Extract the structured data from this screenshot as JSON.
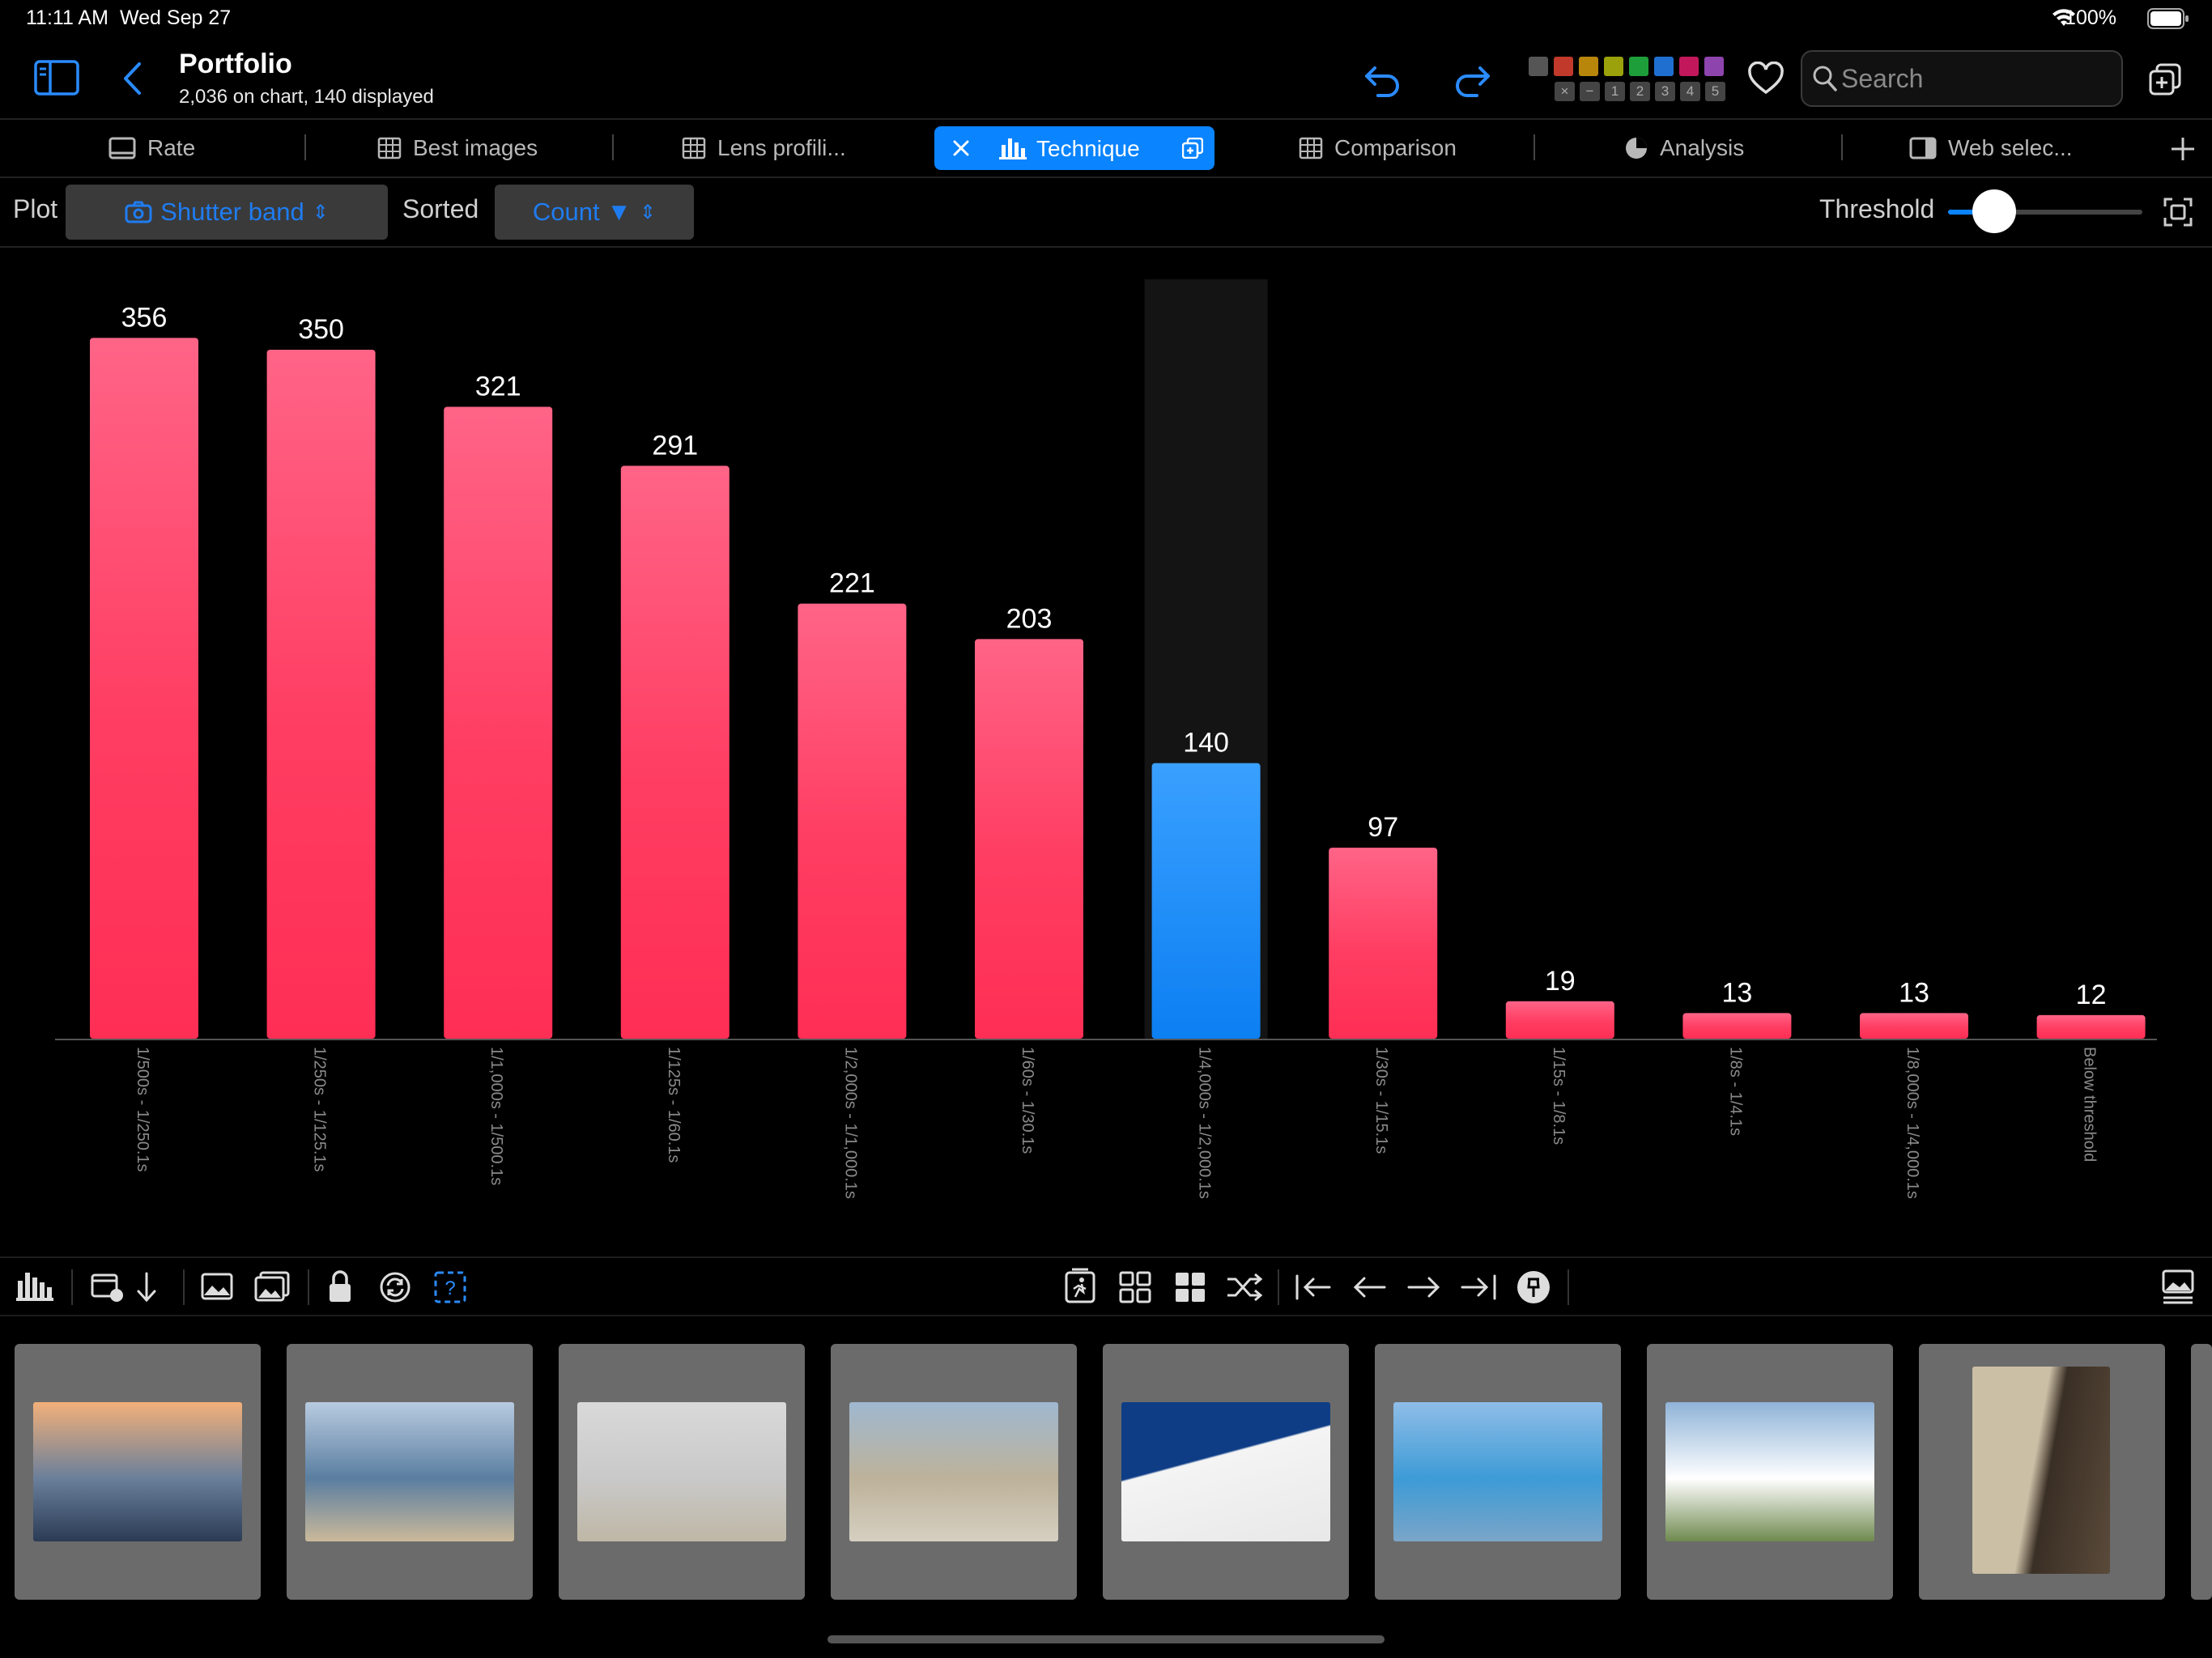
{
  "status_bar": {
    "time": "11:11 AM",
    "date": "Wed Sep 27",
    "battery": "100%"
  },
  "header": {
    "title": "Portfolio",
    "subtitle": "2,036 on chart, 140 displayed",
    "search_placeholder": "Search",
    "color_labels": [
      "#555555",
      "#c0392b",
      "#b8860b",
      "#9aa10a",
      "#1e9e3a",
      "#1f6fd1",
      "#c2185b",
      "#8e44ad"
    ],
    "rating_filters": [
      "×",
      "−",
      "1",
      "2",
      "3",
      "4",
      "5"
    ]
  },
  "tabs": [
    {
      "label": "Rate",
      "icon": "rate-icon"
    },
    {
      "label": "Best images",
      "icon": "grid-icon"
    },
    {
      "label": "Lens profili...",
      "icon": "grid-icon"
    },
    {
      "label": "Technique",
      "icon": "bar-chart-icon",
      "active": true
    },
    {
      "label": "Comparison",
      "icon": "grid-icon"
    },
    {
      "label": "Analysis",
      "icon": "pie-icon"
    },
    {
      "label": "Web selec...",
      "icon": "sidebar-icon"
    }
  ],
  "controls": {
    "plot_label": "Plot",
    "plot_value": "Shutter band",
    "sorted_label": "Sorted",
    "sorted_value": "Count ▼",
    "threshold_label": "Threshold",
    "threshold_level": 0.12
  },
  "chart_data": {
    "type": "bar",
    "categories": [
      "1/500s - 1/250.1s",
      "1/250s - 1/125.1s",
      "1/1,000s - 1/500.1s",
      "1/125s - 1/60.1s",
      "1/2,000s - 1/1,000.1s",
      "1/60s - 1/30.1s",
      "1/4,000s - 1/2,000.1s",
      "1/30s - 1/15.1s",
      "1/15s - 1/8.1s",
      "1/8s - 1/4.1s",
      "1/8,000s - 1/4,000.1s",
      "Below threshold"
    ],
    "values": [
      356,
      350,
      321,
      291,
      221,
      203,
      140,
      97,
      19,
      13,
      13,
      12
    ],
    "selected_index": 6,
    "bar_color": "#ff3b5c",
    "selected_color": "#1a85f5",
    "ylim": [
      0,
      380
    ],
    "grid": false
  },
  "thumbnails": [
    {
      "name": "sunset-sea",
      "colors": [
        "#f2b07a",
        "#6a7f9a",
        "#2b3b55"
      ]
    },
    {
      "name": "beach-horizon",
      "colors": [
        "#b8cbe0",
        "#5a7ea0",
        "#cbb99a"
      ]
    },
    {
      "name": "grey-beach",
      "colors": [
        "#d9d9d9",
        "#c9c9c9",
        "#bfb7a6"
      ]
    },
    {
      "name": "white-cliffs",
      "colors": [
        "#9fb8d0",
        "#bdb29a",
        "#d6cfc1"
      ]
    },
    {
      "name": "white-building-blue-sky",
      "colors": [
        "#0e3d86",
        "#f4f4f4",
        "#e8e8e8"
      ]
    },
    {
      "name": "blue-signpost",
      "colors": [
        "#8fbde8",
        "#3d9bd6",
        "#7aa5c8"
      ]
    },
    {
      "name": "white-lighthouse",
      "colors": [
        "#8fb3d8",
        "#ffffff",
        "#6f8a4f"
      ]
    },
    {
      "name": "rocky-cove",
      "colors": [
        "#3a2f25",
        "#cbbfa6",
        "#5a4a3a"
      ]
    }
  ]
}
